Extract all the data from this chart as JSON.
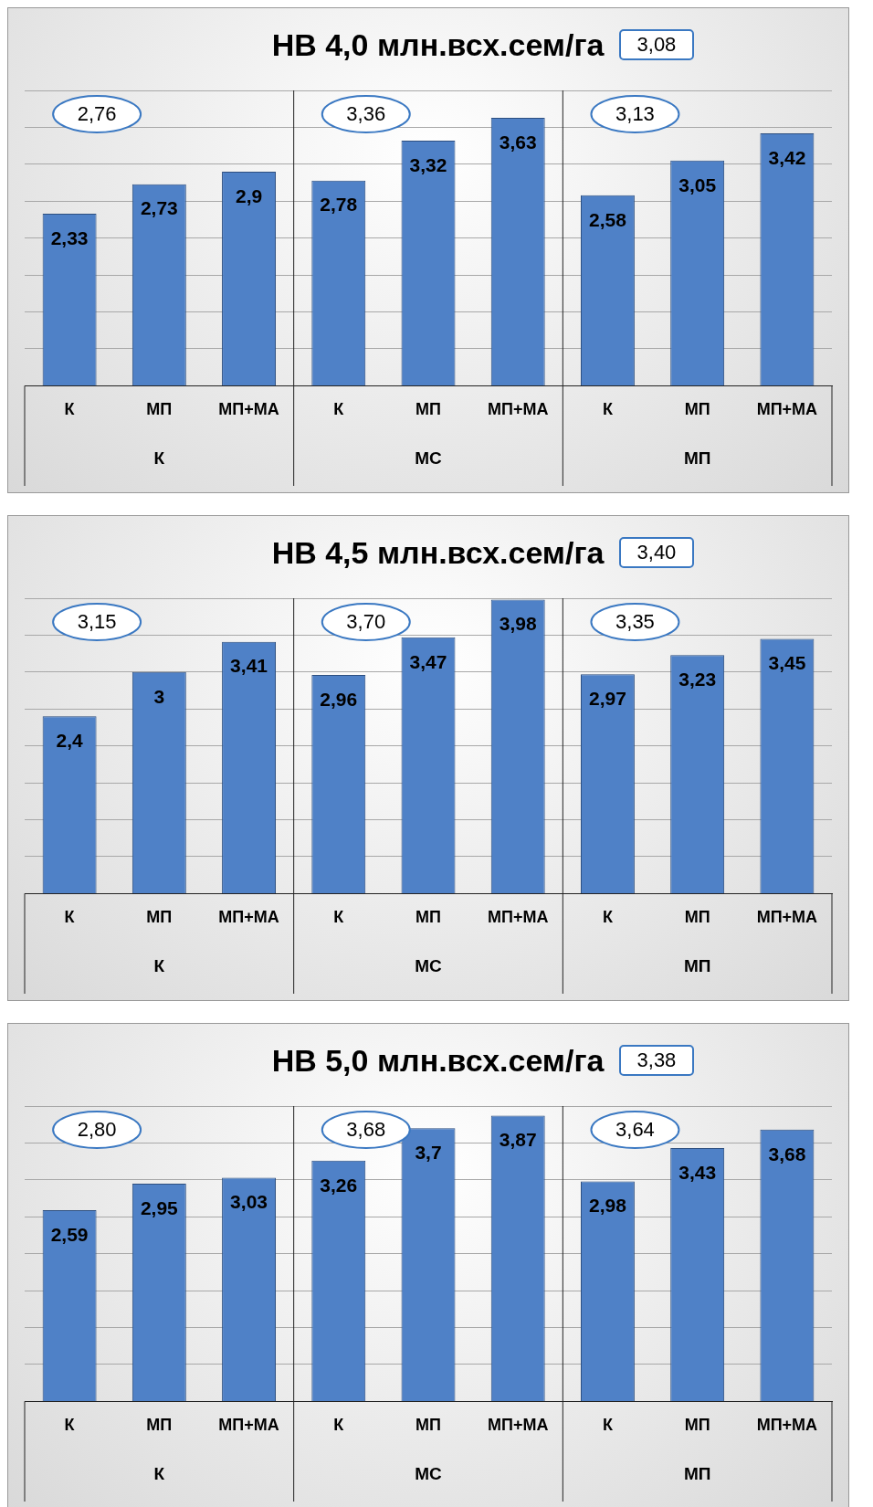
{
  "chart_data": [
    {
      "type": "bar",
      "title": "НВ 4,0 млн.всх.сем/га",
      "categories": [
        "К",
        "МП",
        "МП+МА",
        "К",
        "МП",
        "МП+МА",
        "К",
        "МП",
        "МП+МА"
      ],
      "values": [
        2.33,
        2.73,
        2.9,
        2.78,
        3.32,
        3.63,
        2.58,
        3.05,
        3.42
      ],
      "value_labels": [
        "2,33",
        "2,73",
        "2,9",
        "2,78",
        "3,32",
        "3,63",
        "2,58",
        "3,05",
        "3,42"
      ],
      "color": "#4f81c7",
      "ylim": [
        0,
        4
      ],
      "tick_labels": "x",
      "grid": "y",
      "legend": false,
      "annotations": [
        "3,08",
        "2,76",
        "3,36",
        "3,13",
        "К",
        "МС",
        "МП"
      ]
    },
    {
      "type": "bar",
      "title": "НВ 4,5 млн.всх.сем/га",
      "categories": [
        "К",
        "МП",
        "МП+МА",
        "К",
        "МП",
        "МП+МА",
        "К",
        "МП",
        "МП+МА"
      ],
      "values": [
        2.4,
        3,
        3.41,
        2.96,
        3.47,
        3.98,
        2.97,
        3.23,
        3.45
      ],
      "value_labels": [
        "2,4",
        "3",
        "3,41",
        "2,96",
        "3,47",
        "3,98",
        "2,97",
        "3,23",
        "3,45"
      ],
      "color": "#4f81c7",
      "ylim": [
        0,
        4
      ],
      "tick_labels": "x",
      "grid": "y",
      "legend": false,
      "annotations": [
        "3,40",
        "3,15",
        "3,70",
        "3,35",
        "К",
        "МС",
        "МП"
      ]
    },
    {
      "type": "bar",
      "title": "НВ 5,0 млн.всх.сем/га",
      "categories": [
        "К",
        "МП",
        "МП+МА",
        "К",
        "МП",
        "МП+МА",
        "К",
        "МП",
        "МП+МА"
      ],
      "values": [
        2.59,
        2.95,
        3.03,
        3.26,
        3.7,
        3.87,
        2.98,
        3.43,
        3.68
      ],
      "value_labels": [
        "2,59",
        "2,95",
        "3,03",
        "3,26",
        "3,7",
        "3,87",
        "2,98",
        "3,43",
        "3,68"
      ],
      "color": "#4f81c7",
      "ylim": [
        0,
        4
      ],
      "tick_labels": "x",
      "grid": "y",
      "legend": false,
      "annotations": [
        "3,38",
        "2,80",
        "3,68",
        "3,64",
        "К",
        "МС",
        "МП"
      ]
    }
  ]
}
